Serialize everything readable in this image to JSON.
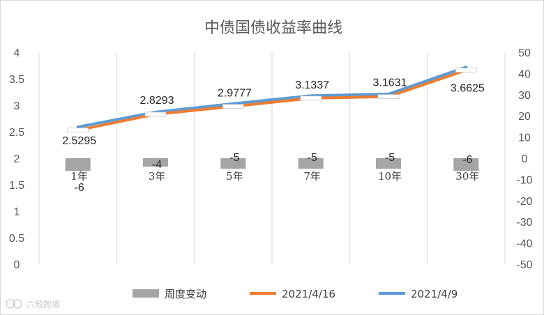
{
  "chart_data": {
    "type": "line",
    "title": "中债国债收益率曲线",
    "categories": [
      "1年",
      "3年",
      "5年",
      "7年",
      "10年",
      "30年"
    ],
    "series": [
      {
        "name": "周度变动",
        "type": "bar",
        "axis": "right",
        "values": [
          -6,
          -4,
          -5,
          -5,
          -5,
          -6
        ],
        "labels": [
          "-6",
          "-4",
          "-5",
          "-5",
          "-5",
          "-6"
        ],
        "color": "#a5a5a5"
      },
      {
        "name": "2021/4/16",
        "type": "line",
        "axis": "left",
        "values": [
          2.5295,
          2.8293,
          2.9777,
          3.1337,
          3.1631,
          3.6625
        ],
        "labels": [
          "2.5295",
          "2.8293",
          "2.9777",
          "3.1337",
          "3.1631",
          "3.6625"
        ],
        "color": "#ed7d31"
      },
      {
        "name": "2021/4/9",
        "type": "line",
        "axis": "left",
        "values": [
          2.59,
          2.87,
          3.03,
          3.18,
          3.21,
          3.72
        ],
        "color": "#5b9bd5"
      }
    ],
    "y_left": {
      "min": 0,
      "max": 4,
      "step": 0.5,
      "ticks": [
        "0",
        "0.5",
        "1",
        "1.5",
        "2",
        "2.5",
        "3",
        "3.5",
        "4"
      ]
    },
    "y_right": {
      "min": -50,
      "max": 50,
      "step": 10,
      "ticks": [
        "-50",
        "-40",
        "-30",
        "-20",
        "-10",
        "0",
        "10",
        "20",
        "30",
        "40",
        "50"
      ]
    },
    "grid": "vertical category separators",
    "legend_position": "bottom"
  },
  "watermark": {
    "text": "六殻跨境"
  }
}
